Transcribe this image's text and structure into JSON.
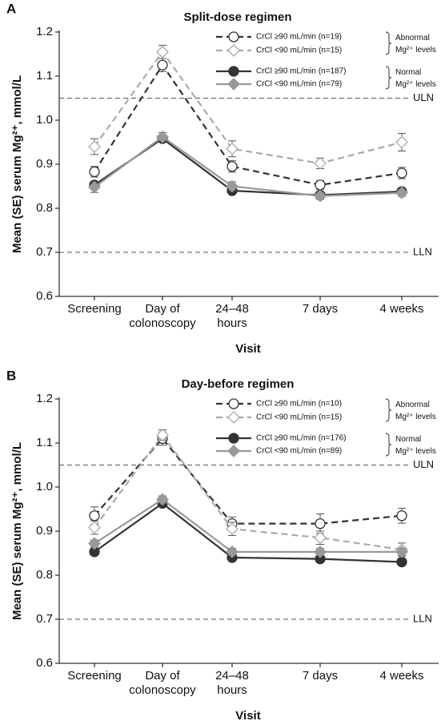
{
  "chart_data": [
    {
      "type": "line",
      "panel": "A",
      "title": "Split-dose regimen",
      "ylabel": "Mean (SE) serum Mg²⁺, mmol/L",
      "xlabel": "Visit",
      "categories": [
        "Screening",
        "Day of\ncolonoscopy",
        "24–48\nhours",
        "7 days",
        "4 weeks"
      ],
      "ylim": [
        0.6,
        1.2
      ],
      "yticks": [
        0.6,
        0.7,
        0.8,
        0.9,
        {
          "value": 1,
          "label": "1.0"
        },
        1.1,
        1.2
      ],
      "reference_lines": [
        {
          "label": "ULN",
          "value": 1.05
        },
        {
          "label": "LLN",
          "value": 0.7
        }
      ],
      "groups": [
        "Abnormal\nMg²⁺ levels",
        "Normal\nMg²⁺ levels"
      ],
      "series": [
        {
          "name": "CrCl ≥90 mL/min (n=19)",
          "color": "#333333",
          "dashed": true,
          "marker": "circle",
          "filled": false,
          "values": [
            0.883,
            1.125,
            0.895,
            0.853,
            0.88
          ],
          "errors": [
            0.012,
            0.015,
            0.013,
            0.01,
            0.013
          ]
        },
        {
          "name": "CrCl <90 mL/min (n=15)",
          "color": "#aaaaaa",
          "dashed": true,
          "marker": "diamond",
          "filled": false,
          "values": [
            0.94,
            1.155,
            0.935,
            0.902,
            0.95
          ],
          "errors": [
            0.018,
            0.015,
            0.018,
            0.012,
            0.02
          ]
        },
        {
          "name": "CrCl ≥90 mL/min (n=187)",
          "color": "#333333",
          "dashed": false,
          "marker": "circle",
          "filled": true,
          "values": [
            0.853,
            0.958,
            0.84,
            0.83,
            0.838
          ],
          "errors": [
            0.005,
            0.005,
            0.005,
            0.005,
            0.005
          ]
        },
        {
          "name": "CrCl <90 mL/min (n=79)",
          "color": "#999999",
          "dashed": false,
          "marker": "diamond",
          "filled": true,
          "values": [
            0.848,
            0.962,
            0.85,
            0.828,
            0.835
          ],
          "errors": [
            0.012,
            0.01,
            0.01,
            0.008,
            0.008
          ]
        }
      ]
    },
    {
      "type": "line",
      "panel": "B",
      "title": "Day-before regimen",
      "ylabel": "Mean (SE) serum Mg²⁺, mmol/L",
      "xlabel": "Visit",
      "categories": [
        "Screening",
        "Day of\ncolonoscopy",
        "24–48\nhours",
        "7 days",
        "4 weeks"
      ],
      "ylim": [
        0.6,
        1.2
      ],
      "yticks": [
        0.6,
        0.7,
        0.8,
        0.9,
        {
          "value": 1,
          "label": "1.0"
        },
        1.1,
        1.2
      ],
      "reference_lines": [
        {
          "label": "ULN",
          "value": 1.05
        },
        {
          "label": "LLN",
          "value": 0.7
        }
      ],
      "groups": [
        "Abnormal\nMg²⁺ levels",
        "Normal\nMg²⁺ levels"
      ],
      "series": [
        {
          "name": "CrCl ≥90 mL/min (n=10)",
          "color": "#333333",
          "dashed": true,
          "marker": "circle",
          "filled": false,
          "values": [
            0.935,
            1.11,
            0.917,
            0.917,
            0.935
          ],
          "errors": [
            0.02,
            0.015,
            0.015,
            0.022,
            0.017
          ]
        },
        {
          "name": "CrCl <90 mL/min (n=15)",
          "color": "#aaaaaa",
          "dashed": true,
          "marker": "diamond",
          "filled": false,
          "values": [
            0.908,
            1.118,
            0.905,
            0.885,
            0.858
          ],
          "errors": [
            0.015,
            0.012,
            0.015,
            0.015,
            0.015
          ]
        },
        {
          "name": "CrCl ≥90 mL/min (n=176)",
          "color": "#333333",
          "dashed": false,
          "marker": "circle",
          "filled": true,
          "values": [
            0.853,
            0.963,
            0.84,
            0.837,
            0.83
          ],
          "errors": [
            0.005,
            0.005,
            0.005,
            0.005,
            0.005
          ]
        },
        {
          "name": "CrCl <90 mL/min (n=89)",
          "color": "#999999",
          "dashed": false,
          "marker": "diamond",
          "filled": true,
          "values": [
            0.872,
            0.972,
            0.853,
            0.853,
            0.853
          ],
          "errors": [
            0.008,
            0.008,
            0.008,
            0.008,
            0.008
          ]
        }
      ]
    }
  ]
}
